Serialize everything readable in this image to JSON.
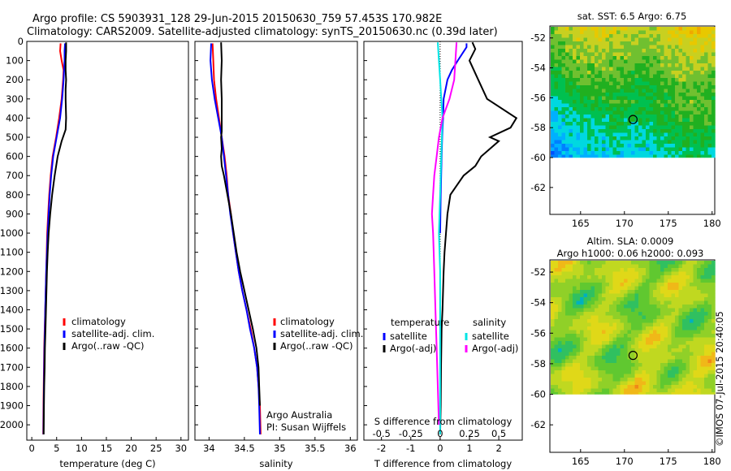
{
  "header": {
    "line1": "Argo profile: CS 5903931_128 29-Jun-2015 20150630_759 57.453S 170.982E",
    "line2": "Climatology: CARS2009. Satellite-adjusted climatology: synTS_20150630.nc (0.39d later)"
  },
  "side_text": "©IMOS 07-Jul-2015 20:40:05",
  "colors": {
    "climatology": "#ff0000",
    "satellite": "#0000ff",
    "argo": "#000000",
    "sal_satellite": "#00e5e5",
    "sal_argo": "#ff00ff",
    "marker": "#000000"
  },
  "chart_data": [
    {
      "id": "temperature",
      "type": "line",
      "xlabel": "temperature (deg C)",
      "xlim": [
        -1,
        31.5
      ],
      "ylim": [
        2080,
        0
      ],
      "xticks": [
        "0",
        "5",
        "10",
        "15",
        "20",
        "25",
        "30"
      ],
      "xtick_values": [
        0,
        5,
        10,
        15,
        20,
        25,
        30
      ],
      "yticks": [
        "0",
        "100",
        "200",
        "300",
        "400",
        "500",
        "600",
        "700",
        "800",
        "900",
        "1000",
        "1100",
        "1200",
        "1300",
        "1400",
        "1500",
        "1600",
        "1700",
        "1800",
        "1900",
        "2000"
      ],
      "ytick_values": [
        0,
        100,
        200,
        300,
        400,
        500,
        600,
        700,
        800,
        900,
        1000,
        1100,
        1200,
        1300,
        1400,
        1500,
        1600,
        1700,
        1800,
        1900,
        2000
      ],
      "legend": [
        "climatology",
        "satellite-adj. clim.",
        "Argo(..raw -QC)"
      ],
      "series": [
        {
          "name": "climatology",
          "color": "#ff0000",
          "x": [
            5.8,
            5.7,
            6.0,
            6.4,
            6.3,
            6.0,
            5.5,
            4.9,
            4.2,
            3.8,
            3.5,
            3.3,
            3.1,
            3.0,
            2.9,
            2.8,
            2.7,
            2.6,
            2.5,
            2.4,
            2.35,
            2.3
          ],
          "y": [
            10,
            50,
            100,
            150,
            200,
            300,
            400,
            500,
            600,
            700,
            800,
            900,
            1000,
            1100,
            1200,
            1300,
            1400,
            1500,
            1600,
            1800,
            1900,
            2050
          ]
        },
        {
          "name": "satellite-adj. clim.",
          "color": "#0000ff",
          "x": [
            6.7,
            6.6,
            6.6,
            6.5,
            6.4,
            6.1,
            5.7,
            5.0,
            4.3,
            3.9,
            3.6,
            3.4,
            3.2,
            3.05,
            2.9,
            2.8,
            2.7,
            2.65,
            2.55,
            2.45,
            2.4,
            2.35
          ],
          "y": [
            10,
            50,
            100,
            150,
            200,
            300,
            400,
            500,
            600,
            700,
            800,
            900,
            1000,
            1100,
            1200,
            1300,
            1400,
            1500,
            1600,
            1800,
            1900,
            2050
          ]
        },
        {
          "name": "Argo(..raw -QC)",
          "color": "#000000",
          "x": [
            6.9,
            6.9,
            6.8,
            6.8,
            6.9,
            6.8,
            6.8,
            6.9,
            6.8,
            6.0,
            5.2,
            4.6,
            4.1,
            3.7,
            3.4,
            3.2,
            3.05,
            2.95,
            2.85,
            2.75,
            2.65,
            2.6,
            2.5,
            2.45,
            2.4
          ],
          "y": [
            5,
            50,
            100,
            150,
            200,
            250,
            300,
            400,
            460,
            520,
            600,
            700,
            800,
            900,
            1000,
            1100,
            1200,
            1300,
            1400,
            1500,
            1600,
            1700,
            1800,
            1900,
            2050
          ]
        }
      ]
    },
    {
      "id": "salinity",
      "type": "line",
      "xlabel": "salinity",
      "xlim": [
        33.8,
        36.1
      ],
      "ylim": [
        2080,
        0
      ],
      "xticks": [
        "34",
        "34.5",
        "35",
        "35.5",
        "36"
      ],
      "xtick_values": [
        34,
        34.5,
        35,
        35.5,
        36
      ],
      "legend": [
        "climatology",
        "satellite-adj. clim.",
        "Argo(..raw -QC)"
      ],
      "annotation": [
        "Argo Australia",
        "PI: Susan Wijffels"
      ],
      "series": [
        {
          "name": "climatology",
          "color": "#ff0000",
          "x": [
            34.05,
            34.06,
            34.07,
            34.1,
            34.14,
            34.18,
            34.22,
            34.25,
            34.27,
            34.31,
            34.34,
            34.38,
            34.42,
            34.47,
            34.53,
            34.59,
            34.64,
            34.68,
            34.7,
            34.72,
            34.73
          ],
          "y": [
            10,
            100,
            200,
            300,
            400,
            500,
            600,
            700,
            800,
            900,
            1000,
            1100,
            1200,
            1300,
            1400,
            1500,
            1600,
            1700,
            1800,
            1900,
            2050
          ]
        },
        {
          "name": "satellite-adj. clim.",
          "color": "#0000ff",
          "x": [
            34.03,
            34.02,
            34.04,
            34.08,
            34.13,
            34.18,
            34.21,
            34.24,
            34.27,
            34.3,
            34.34,
            34.38,
            34.42,
            34.47,
            34.53,
            34.58,
            34.64,
            34.68,
            34.7,
            34.71,
            34.72
          ],
          "y": [
            10,
            100,
            200,
            300,
            400,
            500,
            600,
            700,
            800,
            900,
            1000,
            1100,
            1200,
            1300,
            1400,
            1500,
            1600,
            1700,
            1800,
            1900,
            2050
          ]
        },
        {
          "name": "Argo(..raw -QC)",
          "color": "#000000",
          "x": [
            34.17,
            34.18,
            34.17,
            34.18,
            34.18,
            34.18,
            34.17,
            34.18,
            34.17,
            34.18,
            34.21,
            34.26,
            34.31,
            34.35,
            34.39,
            34.44,
            34.5,
            34.56,
            34.62,
            34.67,
            34.7,
            34.71,
            34.72
          ],
          "y": [
            5,
            100,
            200,
            300,
            400,
            470,
            500,
            560,
            600,
            650,
            700,
            800,
            900,
            1000,
            1100,
            1200,
            1300,
            1400,
            1500,
            1600,
            1700,
            1800,
            1900
          ]
        }
      ]
    },
    {
      "id": "differences",
      "type": "line",
      "xlabel": "T difference from climatology",
      "x2label": "S difference from climatology",
      "xlim": [
        -2.6,
        2.8
      ],
      "ylim": [
        2080,
        0
      ],
      "xticks": [
        "-2",
        "-1",
        "0",
        "1",
        "2"
      ],
      "xtick_values": [
        -2,
        -1,
        0,
        1,
        2
      ],
      "x2ticks": [
        "-0.5",
        "-0.25",
        "0",
        "0.25",
        "0.5"
      ],
      "x2tick_values": [
        -0.5,
        -0.25,
        0,
        0.25,
        0.5
      ],
      "legend_left_title": "temperature",
      "legend_right_title": "salinity",
      "legend_left": [
        "satellite",
        "Argo(-adj)"
      ],
      "legend_right": [
        "satellite",
        "Argo(-adj)"
      ],
      "series": [
        {
          "name": "temperature satellite",
          "color": "#0000ff",
          "x": [
            0.9,
            0.9,
            0.6,
            0.4,
            0.25,
            0.12,
            0.1,
            0.07,
            0.05,
            0.02,
            0.0
          ],
          "y": [
            10,
            30,
            100,
            150,
            200,
            300,
            400,
            500,
            600,
            800,
            1000
          ]
        },
        {
          "name": "temperature Argo(-adj)",
          "color": "#000000",
          "x": [
            1.1,
            1.2,
            1.0,
            1.3,
            1.6,
            2.6,
            2.4,
            1.7,
            2.0,
            1.4,
            1.2,
            0.8,
            0.35,
            0.25,
            0.2,
            0.15,
            0.12,
            0.1,
            0.08,
            0.05,
            0.03,
            0.02,
            0.0
          ],
          "y": [
            5,
            40,
            100,
            200,
            300,
            400,
            450,
            500,
            520,
            600,
            650,
            700,
            800,
            900,
            1000,
            1100,
            1200,
            1300,
            1400,
            1500,
            1700,
            1900,
            2050
          ]
        },
        {
          "name": "salinity satellite",
          "color": "#00e5e5",
          "x": [
            -0.02,
            -0.01,
            0.0,
            0.01,
            0.02,
            0.01,
            0.0,
            -0.01,
            0.0,
            0.0,
            0.0,
            0.0
          ],
          "y": [
            5,
            100,
            200,
            300,
            400,
            600,
            800,
            1000,
            1200,
            1500,
            1800,
            2050
          ]
        },
        {
          "name": "salinity Argo(-adj)",
          "color": "#ff00ff",
          "x": [
            0.14,
            0.13,
            0.12,
            0.08,
            0.02,
            -0.01,
            -0.03,
            -0.05,
            -0.06,
            -0.07,
            -0.06,
            -0.05,
            -0.04,
            -0.03,
            -0.02,
            -0.01
          ],
          "y": [
            5,
            100,
            200,
            300,
            400,
            500,
            600,
            700,
            800,
            900,
            1000,
            1200,
            1400,
            1600,
            1800,
            2000
          ]
        }
      ]
    },
    {
      "id": "sst_map",
      "type": "heatmap",
      "title": "sat. SST: 6.5 Argo: 6.75",
      "xlim": [
        161.5,
        180.3
      ],
      "ylim": [
        -63.8,
        -51.2
      ],
      "xticks": [
        "165",
        "170",
        "175",
        "180"
      ],
      "xtick_values": [
        165,
        170,
        175,
        180
      ],
      "yticks": [
        "-52",
        "-54",
        "-56",
        "-58",
        "-60",
        "-62"
      ],
      "ytick_values": [
        -52,
        -54,
        -56,
        -58,
        -60,
        -62
      ],
      "data_extent_lat": [
        -60,
        -51.2
      ],
      "marker": {
        "lon": 170.982,
        "lat": -57.453
      }
    },
    {
      "id": "sla_map",
      "type": "heatmap",
      "title": "Altim. SLA: 0.0009",
      "subtitle": "Argo h1000: 0.06 h2000: 0.093",
      "xlim": [
        161.5,
        180.3
      ],
      "ylim": [
        -63.8,
        -51.2
      ],
      "xticks": [
        "165",
        "170",
        "175",
        "180"
      ],
      "xtick_values": [
        165,
        170,
        175,
        180
      ],
      "yticks": [
        "-52",
        "-54",
        "-56",
        "-58",
        "-60",
        "-62"
      ],
      "ytick_values": [
        -52,
        -54,
        -56,
        -58,
        -60,
        -62
      ],
      "data_extent_lat": [
        -60,
        -51.2
      ],
      "marker": {
        "lon": 170.982,
        "lat": -57.453
      }
    }
  ]
}
